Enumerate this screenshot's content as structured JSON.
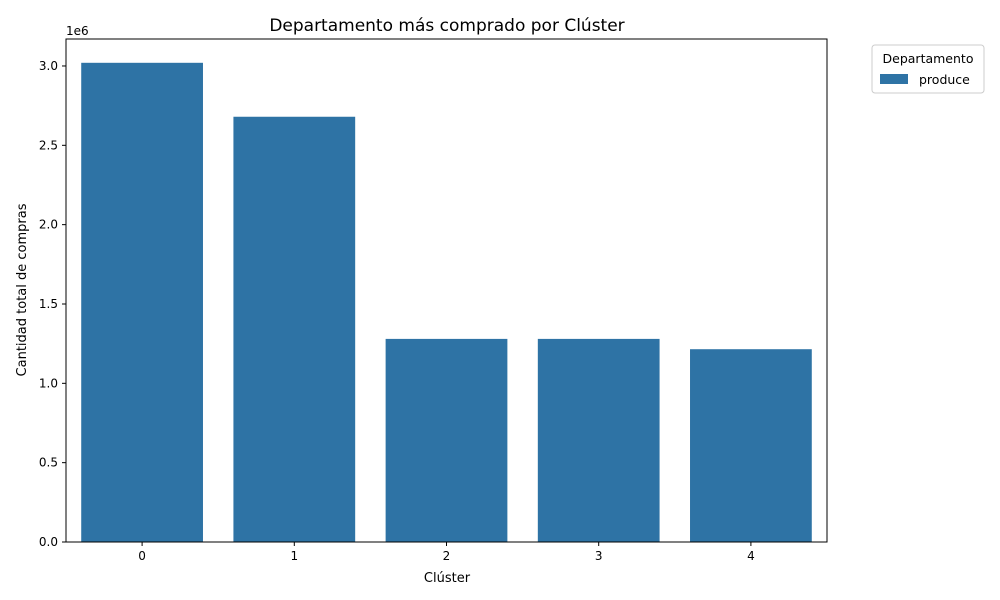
{
  "chart_data": {
    "type": "bar",
    "title": "Departamento más comprado por Clúster",
    "xlabel": "Clúster",
    "ylabel": "Cantidad total de compras",
    "categories": [
      "0",
      "1",
      "2",
      "3",
      "4"
    ],
    "series": [
      {
        "name": "produce",
        "values": [
          3020000,
          2680000,
          1280000,
          1280000,
          1215000
        ],
        "color": "#2e73a5"
      }
    ],
    "ylim": [
      0,
      3170000
    ],
    "yticks": [
      0,
      500000,
      1000000,
      1500000,
      2000000,
      2500000,
      3000000
    ],
    "ytick_labels": [
      "0.0",
      "0.5",
      "1.0",
      "1.5",
      "2.0",
      "2.5",
      "3.0"
    ],
    "y_offset_label": "1e6",
    "legend": {
      "title": "Departamento",
      "placement": "outside-top-right"
    },
    "grid": false
  }
}
